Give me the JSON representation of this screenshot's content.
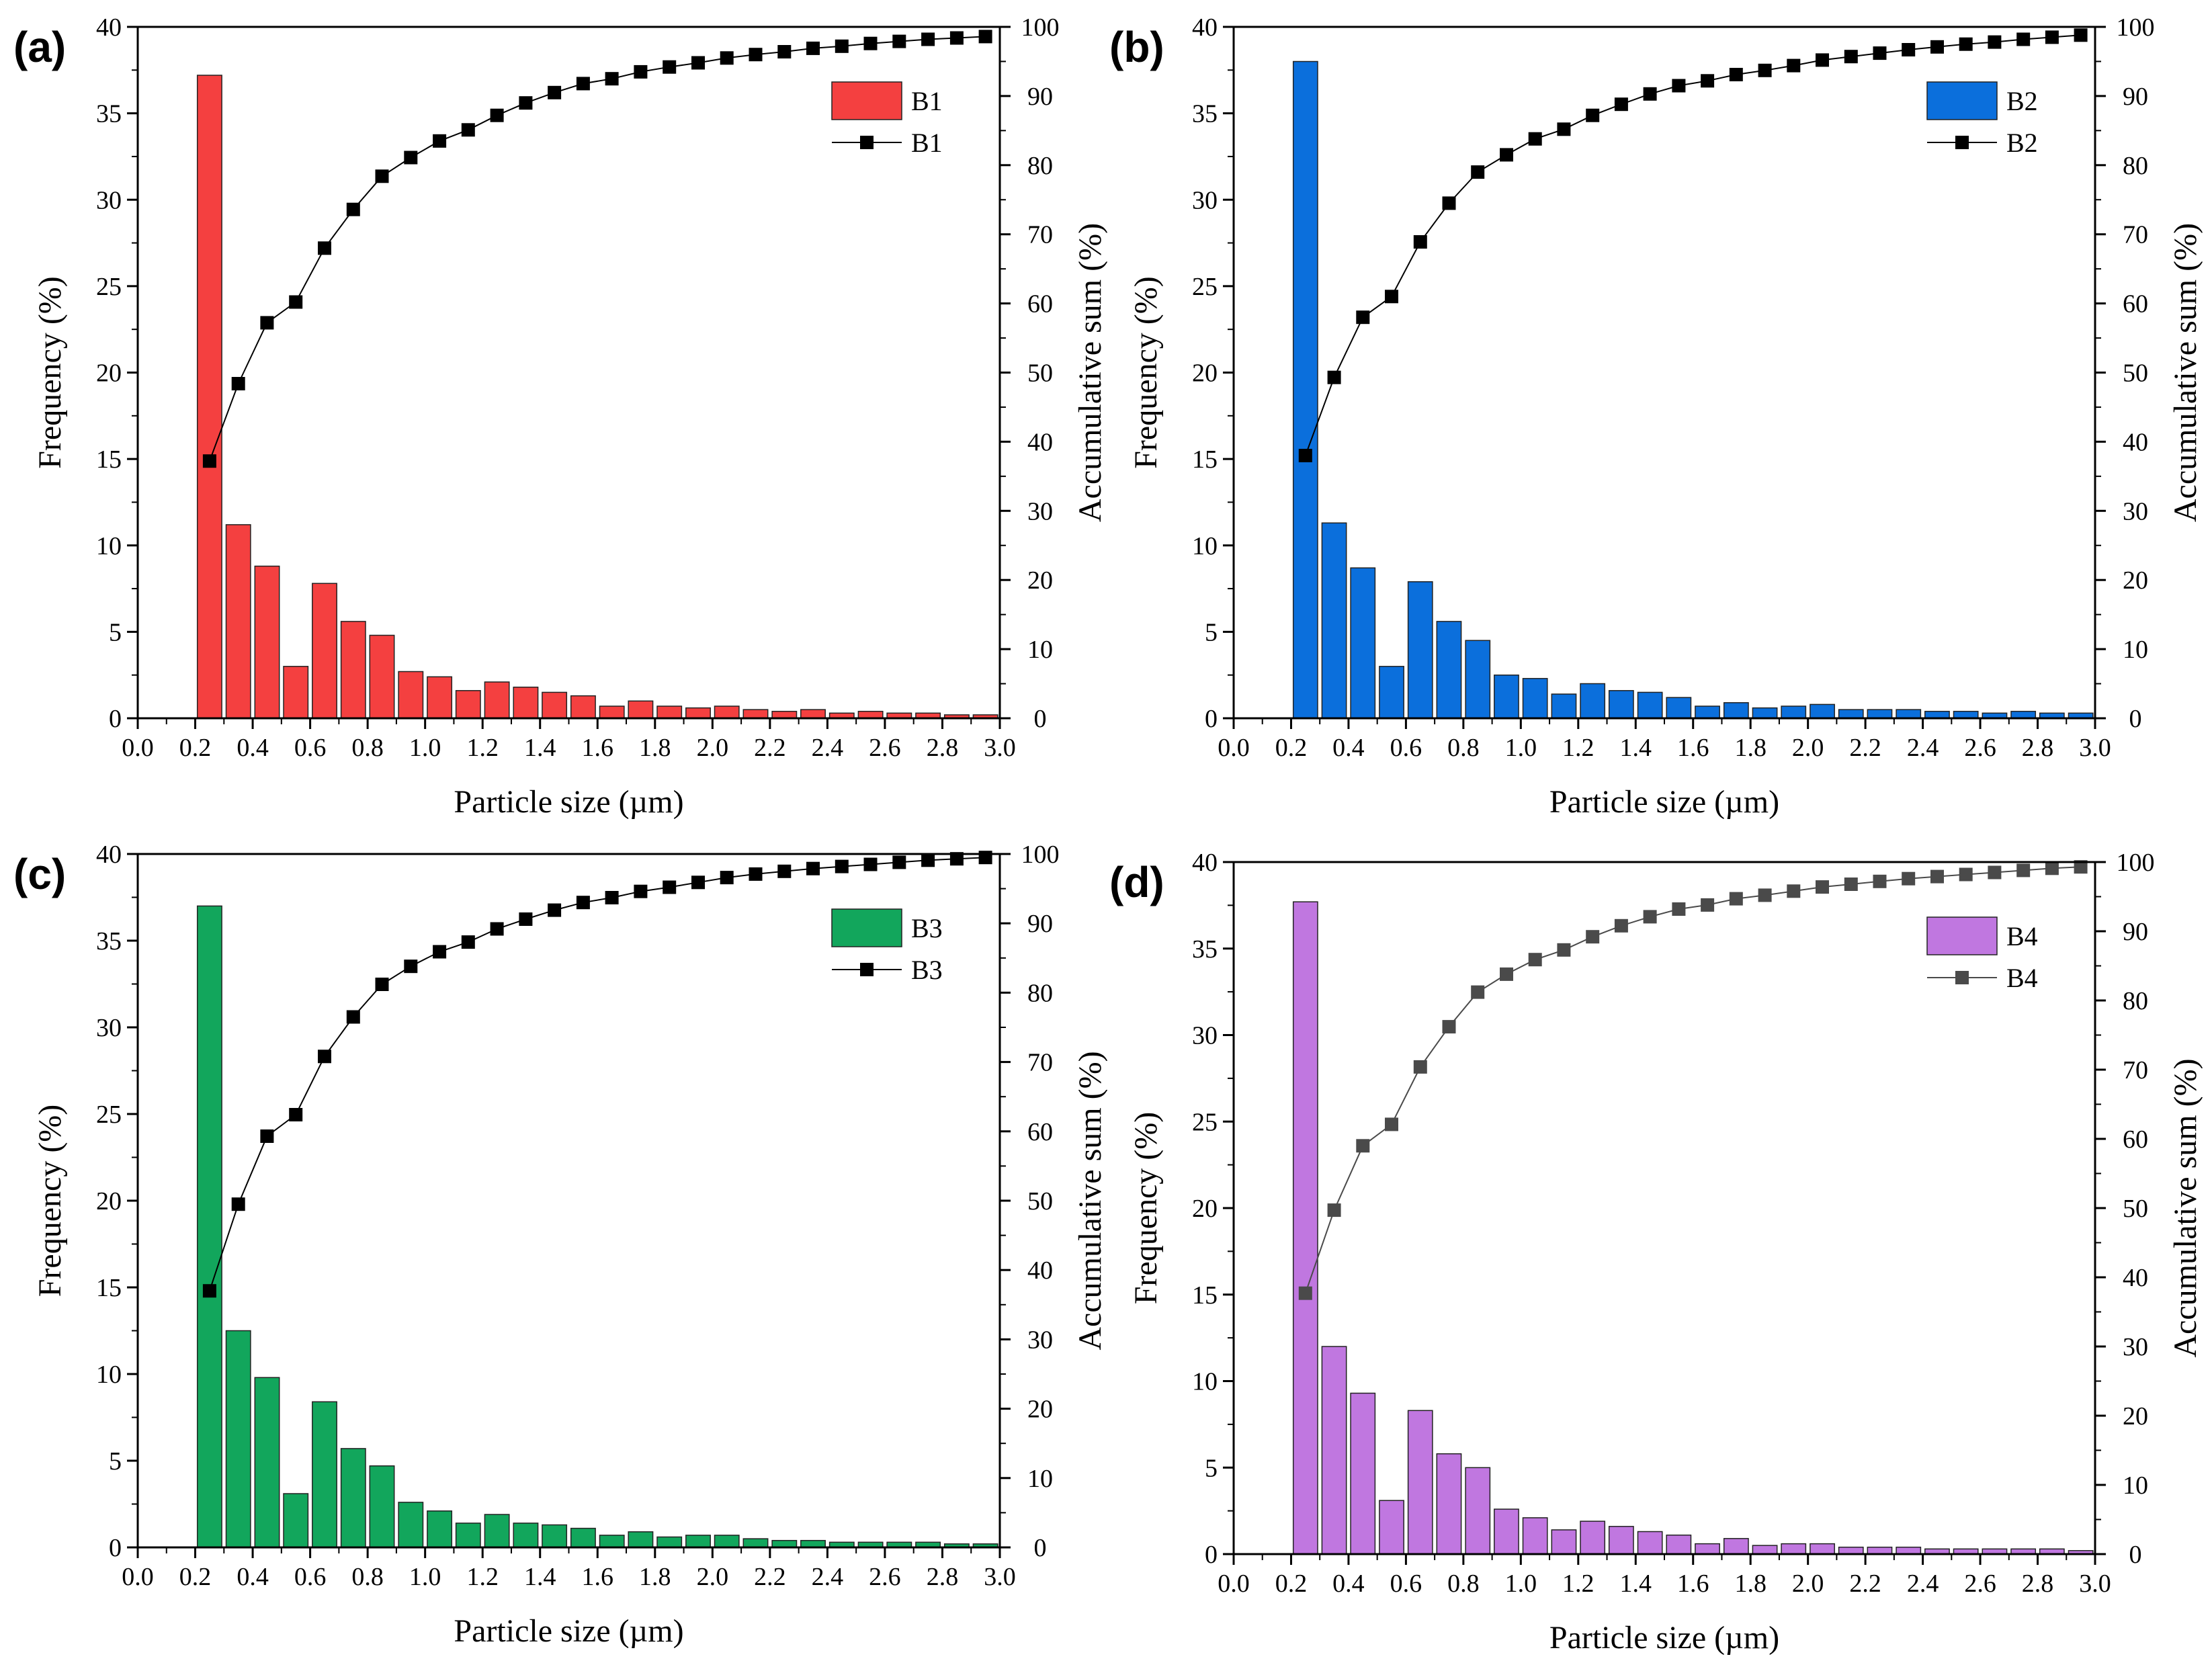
{
  "chart_data": [
    {
      "type": "bar",
      "panel_label": "(a)",
      "xlabel": "Particle size (µm)",
      "ylabel": "Frequency (%)",
      "y2label": "Accumulative sum (%)",
      "xlim": [
        0,
        3.0
      ],
      "ylim": [
        0,
        40
      ],
      "y2lim": [
        0,
        100
      ],
      "xticks": [
        "0.0",
        "0.2",
        "0.4",
        "0.6",
        "0.8",
        "1.0",
        "1.2",
        "1.4",
        "1.6",
        "1.8",
        "2.0",
        "2.2",
        "2.4",
        "2.6",
        "2.8",
        "3.0"
      ],
      "yticks": [
        "0",
        "5",
        "10",
        "15",
        "20",
        "25",
        "30",
        "35",
        "40"
      ],
      "y2ticks": [
        "0",
        "10",
        "20",
        "30",
        "40",
        "50",
        "60",
        "70",
        "80",
        "90",
        "100"
      ],
      "legend_position": "top-right",
      "series": [
        {
          "name": "B1",
          "type": "bar",
          "color": "#f44040",
          "x": [
            0.25,
            0.35,
            0.45,
            0.55,
            0.65,
            0.75,
            0.85,
            0.95,
            1.05,
            1.15,
            1.25,
            1.35,
            1.45,
            1.55,
            1.65,
            1.75,
            1.85,
            1.95,
            2.05,
            2.15,
            2.25,
            2.35,
            2.45,
            2.55,
            2.65,
            2.75,
            2.85,
            2.95
          ],
          "values": [
            37.2,
            11.2,
            8.8,
            3.0,
            7.8,
            5.6,
            4.8,
            2.7,
            2.4,
            1.6,
            2.1,
            1.8,
            1.5,
            1.3,
            0.7,
            1.0,
            0.7,
            0.6,
            0.7,
            0.5,
            0.4,
            0.5,
            0.3,
            0.4,
            0.3,
            0.3,
            0.2,
            0.2
          ]
        },
        {
          "name": "B1",
          "type": "line",
          "color": "#000000",
          "x": [
            0.25,
            0.35,
            0.45,
            0.55,
            0.65,
            0.75,
            0.85,
            0.95,
            1.05,
            1.15,
            1.25,
            1.35,
            1.45,
            1.55,
            1.65,
            1.75,
            1.85,
            1.95,
            2.05,
            2.15,
            2.25,
            2.35,
            2.45,
            2.55,
            2.65,
            2.75,
            2.85,
            2.95
          ],
          "values": [
            37.2,
            48.4,
            57.2,
            60.2,
            68.0,
            73.6,
            78.4,
            81.1,
            83.5,
            85.1,
            87.2,
            89.0,
            90.5,
            91.8,
            92.5,
            93.5,
            94.2,
            94.8,
            95.5,
            96.0,
            96.4,
            96.9,
            97.2,
            97.6,
            97.9,
            98.2,
            98.4,
            98.6
          ]
        }
      ]
    },
    {
      "type": "bar",
      "panel_label": "(b)",
      "xlabel": "Particle size (µm)",
      "ylabel": "Frequency (%)",
      "y2label": "Accumulative sum (%)",
      "xlim": [
        0,
        3.0
      ],
      "ylim": [
        0,
        40
      ],
      "y2lim": [
        0,
        100
      ],
      "xticks": [
        "0.0",
        "0.2",
        "0.4",
        "0.6",
        "0.8",
        "1.0",
        "1.2",
        "1.4",
        "1.6",
        "1.8",
        "2.0",
        "2.2",
        "2.4",
        "2.6",
        "2.8",
        "3.0"
      ],
      "yticks": [
        "0",
        "5",
        "10",
        "15",
        "20",
        "25",
        "30",
        "35",
        "40"
      ],
      "y2ticks": [
        "0",
        "10",
        "20",
        "30",
        "40",
        "50",
        "60",
        "70",
        "80",
        "90",
        "100"
      ],
      "legend_position": "top-right",
      "series": [
        {
          "name": "B2",
          "type": "bar",
          "color": "#0b6fdc",
          "x": [
            0.25,
            0.35,
            0.45,
            0.55,
            0.65,
            0.75,
            0.85,
            0.95,
            1.05,
            1.15,
            1.25,
            1.35,
            1.45,
            1.55,
            1.65,
            1.75,
            1.85,
            1.95,
            2.05,
            2.15,
            2.25,
            2.35,
            2.45,
            2.55,
            2.65,
            2.75,
            2.85,
            2.95
          ],
          "values": [
            38.0,
            11.3,
            8.7,
            3.0,
            7.9,
            5.6,
            4.5,
            2.5,
            2.3,
            1.4,
            2.0,
            1.6,
            1.5,
            1.2,
            0.7,
            0.9,
            0.6,
            0.7,
            0.8,
            0.5,
            0.5,
            0.5,
            0.4,
            0.4,
            0.3,
            0.4,
            0.3,
            0.3
          ]
        },
        {
          "name": "B2",
          "type": "line",
          "color": "#000000",
          "x": [
            0.25,
            0.35,
            0.45,
            0.55,
            0.65,
            0.75,
            0.85,
            0.95,
            1.05,
            1.15,
            1.25,
            1.35,
            1.45,
            1.55,
            1.65,
            1.75,
            1.85,
            1.95,
            2.05,
            2.15,
            2.25,
            2.35,
            2.45,
            2.55,
            2.65,
            2.75,
            2.85,
            2.95
          ],
          "values": [
            38.0,
            49.3,
            58.0,
            61.0,
            68.9,
            74.5,
            79.0,
            81.5,
            83.8,
            85.2,
            87.2,
            88.8,
            90.3,
            91.5,
            92.2,
            93.1,
            93.7,
            94.4,
            95.2,
            95.7,
            96.2,
            96.7,
            97.1,
            97.5,
            97.8,
            98.2,
            98.5,
            98.8
          ]
        }
      ]
    },
    {
      "type": "bar",
      "panel_label": "(c)",
      "xlabel": "Particle size (µm)",
      "ylabel": "Frequency (%)",
      "y2label": "Accumulative sum (%)",
      "xlim": [
        0,
        3.0
      ],
      "ylim": [
        0,
        40
      ],
      "y2lim": [
        0,
        100
      ],
      "xticks": [
        "0.0",
        "0.2",
        "0.4",
        "0.6",
        "0.8",
        "1.0",
        "1.2",
        "1.4",
        "1.6",
        "1.8",
        "2.0",
        "2.2",
        "2.4",
        "2.6",
        "2.8",
        "3.0"
      ],
      "yticks": [
        "0",
        "5",
        "10",
        "15",
        "20",
        "25",
        "30",
        "35",
        "40"
      ],
      "y2ticks": [
        "0",
        "10",
        "20",
        "30",
        "40",
        "50",
        "60",
        "70",
        "80",
        "90",
        "100"
      ],
      "legend_position": "top-right",
      "series": [
        {
          "name": "B3",
          "type": "bar",
          "color": "#12a65c",
          "x": [
            0.25,
            0.35,
            0.45,
            0.55,
            0.65,
            0.75,
            0.85,
            0.95,
            1.05,
            1.15,
            1.25,
            1.35,
            1.45,
            1.55,
            1.65,
            1.75,
            1.85,
            1.95,
            2.05,
            2.15,
            2.25,
            2.35,
            2.45,
            2.55,
            2.65,
            2.75,
            2.85,
            2.95
          ],
          "values": [
            37.0,
            12.5,
            9.8,
            3.1,
            8.4,
            5.7,
            4.7,
            2.6,
            2.1,
            1.4,
            1.9,
            1.4,
            1.3,
            1.1,
            0.7,
            0.9,
            0.6,
            0.7,
            0.7,
            0.5,
            0.4,
            0.4,
            0.3,
            0.3,
            0.3,
            0.3,
            0.2,
            0.2
          ]
        },
        {
          "name": "B3",
          "type": "line",
          "color": "#000000",
          "x": [
            0.25,
            0.35,
            0.45,
            0.55,
            0.65,
            0.75,
            0.85,
            0.95,
            1.05,
            1.15,
            1.25,
            1.35,
            1.45,
            1.55,
            1.65,
            1.75,
            1.85,
            1.95,
            2.05,
            2.15,
            2.25,
            2.35,
            2.45,
            2.55,
            2.65,
            2.75,
            2.85,
            2.95
          ],
          "values": [
            37.0,
            49.5,
            59.3,
            62.4,
            70.8,
            76.5,
            81.2,
            83.8,
            85.9,
            87.3,
            89.2,
            90.6,
            91.9,
            93.0,
            93.7,
            94.6,
            95.2,
            95.9,
            96.6,
            97.1,
            97.5,
            97.9,
            98.2,
            98.5,
            98.8,
            99.1,
            99.3,
            99.5
          ]
        }
      ]
    },
    {
      "type": "bar",
      "panel_label": "(d)",
      "xlabel": "Particle size (µm)",
      "ylabel": "Frequency (%)",
      "y2label": "Accumulative sum (%)",
      "xlim": [
        0,
        3.0
      ],
      "ylim": [
        0,
        40
      ],
      "y2lim": [
        0,
        100
      ],
      "xticks": [
        "0.0",
        "0.2",
        "0.4",
        "0.6",
        "0.8",
        "1.0",
        "1.2",
        "1.4",
        "1.6",
        "1.8",
        "2.0",
        "2.2",
        "2.4",
        "2.6",
        "2.8",
        "3.0"
      ],
      "yticks": [
        "0",
        "5",
        "10",
        "15",
        "20",
        "25",
        "30",
        "35",
        "40"
      ],
      "y2ticks": [
        "0",
        "10",
        "20",
        "30",
        "40",
        "50",
        "60",
        "70",
        "80",
        "90",
        "100"
      ],
      "legend_position": "top-right",
      "series": [
        {
          "name": "B4",
          "type": "bar",
          "color": "#c077e0",
          "x": [
            0.25,
            0.35,
            0.45,
            0.55,
            0.65,
            0.75,
            0.85,
            0.95,
            1.05,
            1.15,
            1.25,
            1.35,
            1.45,
            1.55,
            1.65,
            1.75,
            1.85,
            1.95,
            2.05,
            2.15,
            2.25,
            2.35,
            2.45,
            2.55,
            2.65,
            2.75,
            2.85,
            2.95
          ],
          "values": [
            37.7,
            12.0,
            9.3,
            3.1,
            8.3,
            5.8,
            5.0,
            2.6,
            2.1,
            1.4,
            1.9,
            1.6,
            1.3,
            1.1,
            0.6,
            0.9,
            0.5,
            0.6,
            0.6,
            0.4,
            0.4,
            0.4,
            0.3,
            0.3,
            0.3,
            0.3,
            0.3,
            0.2
          ]
        },
        {
          "name": "B4",
          "type": "line",
          "color": "#4a4a4a",
          "x": [
            0.25,
            0.35,
            0.45,
            0.55,
            0.65,
            0.75,
            0.85,
            0.95,
            1.05,
            1.15,
            1.25,
            1.35,
            1.45,
            1.55,
            1.65,
            1.75,
            1.85,
            1.95,
            2.05,
            2.15,
            2.25,
            2.35,
            2.45,
            2.55,
            2.65,
            2.75,
            2.85,
            2.95
          ],
          "values": [
            37.7,
            49.7,
            59.0,
            62.1,
            70.4,
            76.2,
            81.2,
            83.8,
            85.9,
            87.3,
            89.2,
            90.8,
            92.1,
            93.2,
            93.8,
            94.7,
            95.2,
            95.8,
            96.4,
            96.8,
            97.2,
            97.6,
            97.9,
            98.2,
            98.5,
            98.8,
            99.1,
            99.3
          ]
        }
      ]
    }
  ]
}
